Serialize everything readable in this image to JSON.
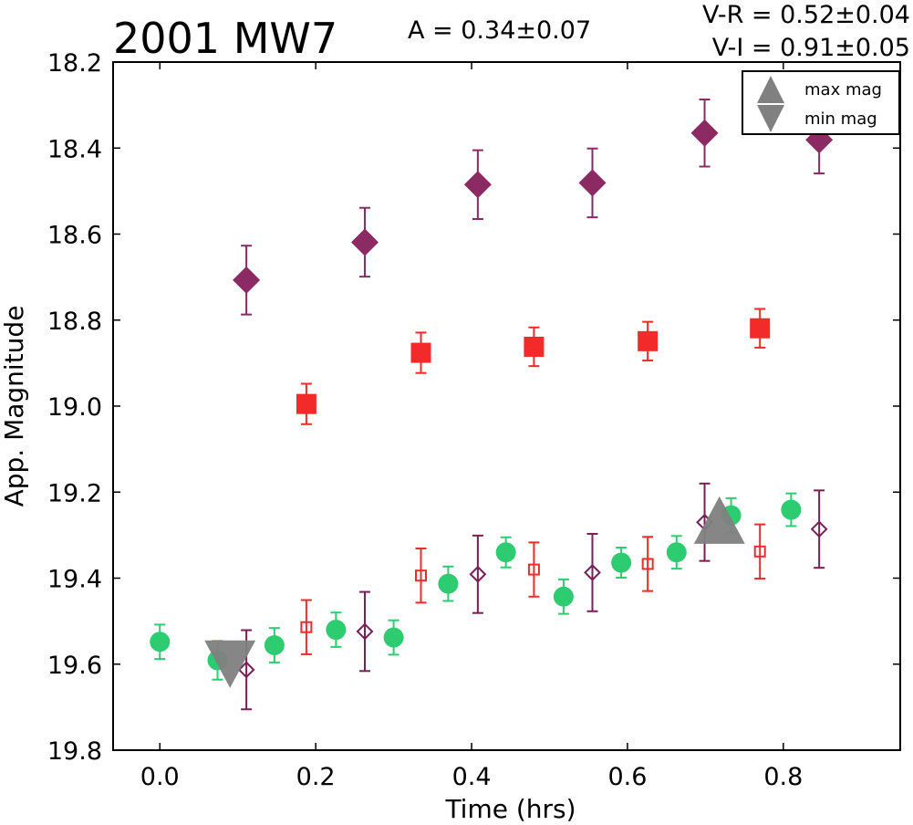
{
  "chart_data": {
    "type": "scatter",
    "title": "2001 MW7",
    "amplitude_label": "A  = 0.34±0.07",
    "color_labels": [
      "V-R = 0.52±0.04",
      "V-I  = 0.91±0.05"
    ],
    "xlabel": "Time (hrs)",
    "ylabel": "App. Magnitude",
    "xlim": [
      -0.06,
      0.95
    ],
    "ylim": [
      19.8,
      18.2
    ],
    "y_inverted": true,
    "xticks": [
      "0.0",
      "0.2",
      "0.4",
      "0.6",
      "0.8"
    ],
    "yticks": [
      "18.2",
      "18.4",
      "18.6",
      "18.8",
      "19.0",
      "19.2",
      "19.4",
      "19.6",
      "19.8"
    ],
    "grid": false,
    "legend": {
      "position": "top-right",
      "items": [
        {
          "label": "max mag",
          "marker": "triangle-up",
          "color": "#808080"
        },
        {
          "label": "min mag",
          "marker": "triangle-down",
          "color": "#808080"
        }
      ]
    },
    "series": [
      {
        "marker": "filled-diamond",
        "color": "#8b2a63",
        "points": [
          {
            "x": 0.111,
            "y": 18.707,
            "err": 0.08
          },
          {
            "x": 0.263,
            "y": 18.619,
            "err": 0.08
          },
          {
            "x": 0.408,
            "y": 18.485,
            "err": 0.08
          },
          {
            "x": 0.555,
            "y": 18.481,
            "err": 0.08
          },
          {
            "x": 0.699,
            "y": 18.365,
            "err": 0.078
          },
          {
            "x": 0.846,
            "y": 18.381,
            "err": 0.078
          }
        ]
      },
      {
        "marker": "filled-square",
        "color": "#f22a2a",
        "points": [
          {
            "x": 0.188,
            "y": 18.995,
            "err": 0.047
          },
          {
            "x": 0.335,
            "y": 18.876,
            "err": 0.047
          },
          {
            "x": 0.48,
            "y": 18.862,
            "err": 0.045
          },
          {
            "x": 0.626,
            "y": 18.849,
            "err": 0.045
          },
          {
            "x": 0.77,
            "y": 18.819,
            "err": 0.045
          }
        ]
      },
      {
        "marker": "filled-circle",
        "color": "#2ecc71",
        "points": [
          {
            "x": 0.0,
            "y": 19.548,
            "err": 0.04
          },
          {
            "x": 0.074,
            "y": 19.591,
            "err": 0.045
          },
          {
            "x": 0.147,
            "y": 19.556,
            "err": 0.04
          },
          {
            "x": 0.226,
            "y": 19.52,
            "err": 0.04
          },
          {
            "x": 0.3,
            "y": 19.538,
            "err": 0.04
          },
          {
            "x": 0.37,
            "y": 19.413,
            "err": 0.04
          },
          {
            "x": 0.444,
            "y": 19.34,
            "err": 0.035
          },
          {
            "x": 0.518,
            "y": 19.443,
            "err": 0.04
          },
          {
            "x": 0.592,
            "y": 19.364,
            "err": 0.035
          },
          {
            "x": 0.663,
            "y": 19.34,
            "err": 0.038
          },
          {
            "x": 0.733,
            "y": 19.254,
            "err": 0.04
          },
          {
            "x": 0.81,
            "y": 19.241,
            "err": 0.038
          }
        ]
      },
      {
        "marker": "open-square",
        "color": "#f22a2a",
        "points": [
          {
            "x": 0.188,
            "y": 19.514,
            "err": 0.063
          },
          {
            "x": 0.335,
            "y": 19.394,
            "err": 0.063
          },
          {
            "x": 0.48,
            "y": 19.38,
            "err": 0.063
          },
          {
            "x": 0.626,
            "y": 19.367,
            "err": 0.063
          },
          {
            "x": 0.77,
            "y": 19.338,
            "err": 0.063
          }
        ]
      },
      {
        "marker": "open-diamond",
        "color": "#7a1f55",
        "points": [
          {
            "x": 0.111,
            "y": 19.613,
            "err": 0.092
          },
          {
            "x": 0.263,
            "y": 19.524,
            "err": 0.092
          },
          {
            "x": 0.408,
            "y": 19.391,
            "err": 0.09
          },
          {
            "x": 0.555,
            "y": 19.387,
            "err": 0.09
          },
          {
            "x": 0.699,
            "y": 19.27,
            "err": 0.09
          },
          {
            "x": 0.846,
            "y": 19.286,
            "err": 0.09
          }
        ]
      }
    ],
    "markers": [
      {
        "label": "min mag",
        "marker": "triangle-down",
        "color": "#808080",
        "x": 0.09,
        "y": 19.6
      },
      {
        "label": "max mag",
        "marker": "triangle-up",
        "color": "#808080",
        "x": 0.718,
        "y": 19.265
      }
    ]
  }
}
